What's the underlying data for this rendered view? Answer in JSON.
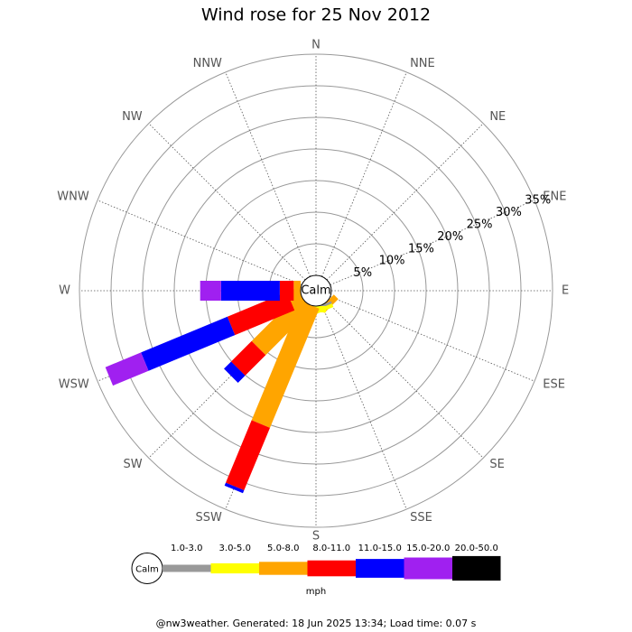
{
  "chart_data": {
    "type": "wind_rose",
    "title": "Wind rose for 25 Nov 2012",
    "directions": [
      "N",
      "NNE",
      "NE",
      "ENE",
      "E",
      "ESE",
      "SE",
      "SSE",
      "S",
      "SSW",
      "SW",
      "WSW",
      "W",
      "WNW",
      "NW",
      "NNW"
    ],
    "rlim": [
      0,
      35
    ],
    "rticks": [
      {
        "value": 5,
        "label": "5%"
      },
      {
        "value": 10,
        "label": "10%"
      },
      {
        "value": 15,
        "label": "15%"
      },
      {
        "value": 20,
        "label": "20%"
      },
      {
        "value": 25,
        "label": "25%"
      },
      {
        "value": 30,
        "label": "30%"
      },
      {
        "value": 35,
        "label": "35%"
      }
    ],
    "calm_label": "Calm",
    "units": "mph",
    "series": [
      {
        "name": "1.0-3.0",
        "color": "#999999",
        "values": [
          0,
          0,
          0,
          0,
          0,
          0,
          0,
          0.4,
          0,
          0,
          0,
          0,
          0,
          0,
          0,
          0
        ]
      },
      {
        "name": "3.0-5.0",
        "color": "#ffff00",
        "values": [
          0,
          0,
          0,
          0,
          0,
          0,
          0,
          0.6,
          1.0,
          0,
          0,
          0,
          0,
          0,
          0,
          0
        ]
      },
      {
        "name": "5.0-8.0",
        "color": "#ffa500",
        "values": [
          0,
          0,
          0,
          0,
          0,
          0,
          1.0,
          0,
          0,
          20.4,
          10.4,
          1.9,
          1.1,
          0,
          0,
          0
        ]
      },
      {
        "name": "8.0-11.0",
        "color": "#ff0000",
        "values": [
          0,
          0,
          0,
          0,
          0,
          0,
          0,
          0,
          0,
          10.7,
          4.6,
          10.2,
          2.2,
          0,
          0,
          0
        ]
      },
      {
        "name": "11.0-15.0",
        "color": "#0000ff",
        "values": [
          0,
          0,
          0,
          0,
          0,
          0,
          0,
          0,
          0,
          0.5,
          1.6,
          14.8,
          9.3,
          0,
          0,
          0
        ]
      },
      {
        "name": "15.0-20.0",
        "color": "#a020f0",
        "values": [
          0,
          0,
          0,
          0,
          0,
          0,
          0,
          0,
          0,
          0,
          0,
          6.1,
          3.3,
          0,
          0,
          0
        ]
      },
      {
        "name": "20.0-50.0",
        "color": "#000000",
        "values": [
          0,
          0,
          0,
          0,
          0,
          0,
          0,
          0,
          0,
          0,
          0,
          0,
          0,
          0,
          0,
          0
        ]
      }
    ],
    "footer": "@nw3weather.  Generated: 18 Jun 2025 13:34; Load time: 0.07 s"
  }
}
